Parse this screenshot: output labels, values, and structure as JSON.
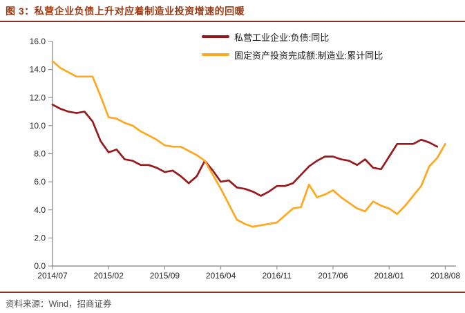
{
  "title": "图 3：私营企业负债上升对应着制造业投资增速的回暖",
  "source": "资料来源：Wind，招商证券",
  "colors": {
    "title_red": "#9C3A13",
    "rule_red": "#8A3324",
    "axis_gray": "#808080",
    "series_dark_red": "#96191C",
    "series_orange": "#FFA71E"
  },
  "chart_data": {
    "type": "line",
    "title": "私营企业负债上升对应着制造业投资增速的回暖",
    "xlabel": "",
    "ylabel": "",
    "frequency": "monthly",
    "x_start": "2014/07",
    "x_end": "2018/08",
    "x_tick_labels": [
      "2014/07",
      "2015/02",
      "2015/09",
      "2016/04",
      "2016/11",
      "2017/06",
      "2018/01",
      "2018/08"
    ],
    "x_tick_month_indices": [
      0,
      7,
      14,
      21,
      28,
      35,
      42,
      49
    ],
    "ylim": [
      0,
      16
    ],
    "y_ticks": [
      0,
      2,
      4,
      6,
      8,
      10,
      12,
      14,
      16
    ],
    "y_tick_labels": [
      "0.0",
      "2.0",
      "4.0",
      "6.0",
      "8.0",
      "10.0",
      "12.0",
      "14.0",
      "16.0"
    ],
    "grid": false,
    "legend_position": "top-center-inside",
    "series": [
      {
        "name": "私营工业企业:负债:同比",
        "color": "#96191C",
        "values": [
          11.5,
          11.2,
          11.0,
          10.9,
          11.0,
          10.3,
          8.9,
          8.1,
          8.3,
          7.6,
          7.5,
          7.2,
          7.2,
          7.0,
          6.7,
          6.8,
          6.4,
          5.9,
          6.4,
          7.5,
          6.8,
          6.0,
          6.1,
          5.6,
          5.5,
          5.3,
          5.0,
          5.3,
          5.7,
          5.7,
          5.9,
          6.5,
          7.1,
          7.5,
          7.8,
          7.8,
          7.6,
          7.5,
          7.2,
          7.6,
          7.0,
          6.9,
          7.8,
          8.7,
          8.7,
          8.7,
          9.0,
          8.8,
          8.5
        ]
      },
      {
        "name": "固定资产投资完成额:制造业:累计同比",
        "color": "#FFA71E",
        "values": [
          14.6,
          14.1,
          13.8,
          13.5,
          13.5,
          13.5,
          12.1,
          10.6,
          10.5,
          10.2,
          10.0,
          9.6,
          9.3,
          9.0,
          8.6,
          8.5,
          8.5,
          8.2,
          7.9,
          7.5,
          6.5,
          5.5,
          4.4,
          3.3,
          3.0,
          2.8,
          2.9,
          3.0,
          3.1,
          3.6,
          4.1,
          4.2,
          5.8,
          4.9,
          5.1,
          5.4,
          4.9,
          4.5,
          4.1,
          3.9,
          4.6,
          4.3,
          4.1,
          3.7,
          4.3,
          5.0,
          5.7,
          7.1,
          7.7,
          8.7
        ]
      }
    ]
  }
}
